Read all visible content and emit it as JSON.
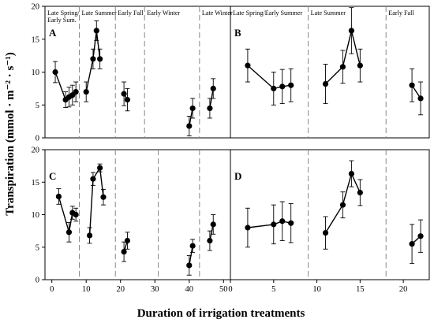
{
  "figure": {
    "ylabel": "Transpiration (mmol · m⁻² · s⁻¹)",
    "xlabel": "Duration of irrigation treatments"
  },
  "chart_data": [
    {
      "panel": "A",
      "type": "line",
      "xlim": [
        -2,
        52
      ],
      "ylim": [
        0,
        20
      ],
      "xticks": [],
      "yticks": [
        0,
        5,
        10,
        15,
        20
      ],
      "seasons": [
        {
          "label": "Late Spring/\nEarly Sum.",
          "start": -2,
          "end": 8
        },
        {
          "label": "Late Summer",
          "start": 8,
          "end": 18.5
        },
        {
          "label": "Early Fall",
          "start": 18.5,
          "end": 27
        },
        {
          "label": "Early Winter",
          "start": 27,
          "end": 43
        },
        {
          "label": "Late Winter",
          "start": 43,
          "end": 52
        }
      ],
      "groups": [
        {
          "x": [
            1,
            4,
            5,
            6,
            7
          ],
          "y": [
            10.0,
            5.8,
            6.2,
            6.5,
            7.0
          ],
          "err": [
            1.6,
            1.2,
            1.5,
            1.5,
            1.5
          ]
        },
        {
          "x": [
            10,
            12,
            13,
            14
          ],
          "y": [
            7.0,
            12.0,
            16.3,
            12.0
          ],
          "err": [
            1.5,
            1.5,
            1.5,
            1.5
          ]
        },
        {
          "x": [
            21,
            22
          ],
          "y": [
            6.7,
            5.8
          ],
          "err": [
            1.8,
            1.7
          ]
        },
        {
          "x": [
            40,
            41
          ],
          "y": [
            1.8,
            4.5
          ],
          "err": [
            1.5,
            1.5
          ]
        },
        {
          "x": [
            46,
            47
          ],
          "y": [
            4.5,
            7.5
          ],
          "err": [
            1.5,
            1.5
          ]
        }
      ]
    },
    {
      "panel": "B",
      "type": "line",
      "xlim": [
        0,
        23
      ],
      "ylim": [
        0,
        20
      ],
      "xticks": [],
      "yticks": [],
      "seasons": [
        {
          "label": "Late Spring/Early Summer",
          "start": 0,
          "end": 9
        },
        {
          "label": "Late Summer",
          "start": 9,
          "end": 18
        },
        {
          "label": "Early Fall",
          "start": 18,
          "end": 23
        }
      ],
      "groups": [
        {
          "x": [
            2,
            5,
            6,
            7
          ],
          "y": [
            11.0,
            7.5,
            7.8,
            8.0
          ],
          "err": [
            2.5,
            2.5,
            2.6,
            2.5
          ]
        },
        {
          "x": [
            11,
            13,
            14,
            15
          ],
          "y": [
            8.2,
            10.8,
            16.3,
            11.0
          ],
          "err": [
            3.0,
            2.5,
            3.5,
            2.5
          ]
        },
        {
          "x": [
            21,
            22
          ],
          "y": [
            8.0,
            6.0
          ],
          "err": [
            2.5,
            2.5
          ]
        }
      ]
    },
    {
      "panel": "C",
      "type": "line",
      "xlim": [
        -2,
        52
      ],
      "ylim": [
        0,
        20
      ],
      "xticks": [
        0,
        10,
        20,
        30,
        40,
        50
      ],
      "yticks": [
        0,
        5,
        10,
        15,
        20
      ],
      "seasons": [
        {
          "label": "",
          "start": -2,
          "end": 8
        },
        {
          "label": "",
          "start": 8,
          "end": 18.5
        },
        {
          "label": "",
          "start": 18.5,
          "end": 31
        },
        {
          "label": "",
          "start": 31,
          "end": 43
        },
        {
          "label": "",
          "start": 43,
          "end": 52
        }
      ],
      "groups": [
        {
          "x": [
            2,
            5,
            6,
            7
          ],
          "y": [
            12.8,
            7.3,
            10.3,
            10.0
          ],
          "err": [
            1.2,
            1.5,
            1.0,
            1.0
          ]
        },
        {
          "x": [
            11,
            12,
            14,
            15
          ],
          "y": [
            6.8,
            15.5,
            17.2,
            12.7
          ],
          "err": [
            1.2,
            1.0,
            0.6,
            1.2
          ]
        },
        {
          "x": [
            21,
            22
          ],
          "y": [
            4.3,
            6.0
          ],
          "err": [
            1.5,
            1.3
          ]
        },
        {
          "x": [
            40,
            41
          ],
          "y": [
            2.2,
            5.2
          ],
          "err": [
            1.5,
            1.0
          ]
        },
        {
          "x": [
            46,
            47
          ],
          "y": [
            6.0,
            8.5
          ],
          "err": [
            1.5,
            1.5
          ]
        }
      ]
    },
    {
      "panel": "D",
      "type": "line",
      "xlim": [
        0,
        23
      ],
      "ylim": [
        0,
        20
      ],
      "xticks": [
        0,
        5,
        10,
        15,
        20
      ],
      "yticks": [],
      "seasons": [
        {
          "label": "",
          "start": 0,
          "end": 9
        },
        {
          "label": "",
          "start": 9,
          "end": 18
        },
        {
          "label": "",
          "start": 18,
          "end": 23
        }
      ],
      "groups": [
        {
          "x": [
            2,
            5,
            6,
            7
          ],
          "y": [
            8.0,
            8.5,
            9.0,
            8.7
          ],
          "err": [
            3.0,
            3.0,
            3.0,
            3.0
          ]
        },
        {
          "x": [
            11,
            13,
            14,
            15
          ],
          "y": [
            7.2,
            11.5,
            16.3,
            13.4
          ],
          "err": [
            2.5,
            2.0,
            2.0,
            2.0
          ]
        },
        {
          "x": [
            21,
            22
          ],
          "y": [
            5.5,
            6.7
          ],
          "err": [
            3.0,
            2.5
          ]
        }
      ]
    }
  ]
}
